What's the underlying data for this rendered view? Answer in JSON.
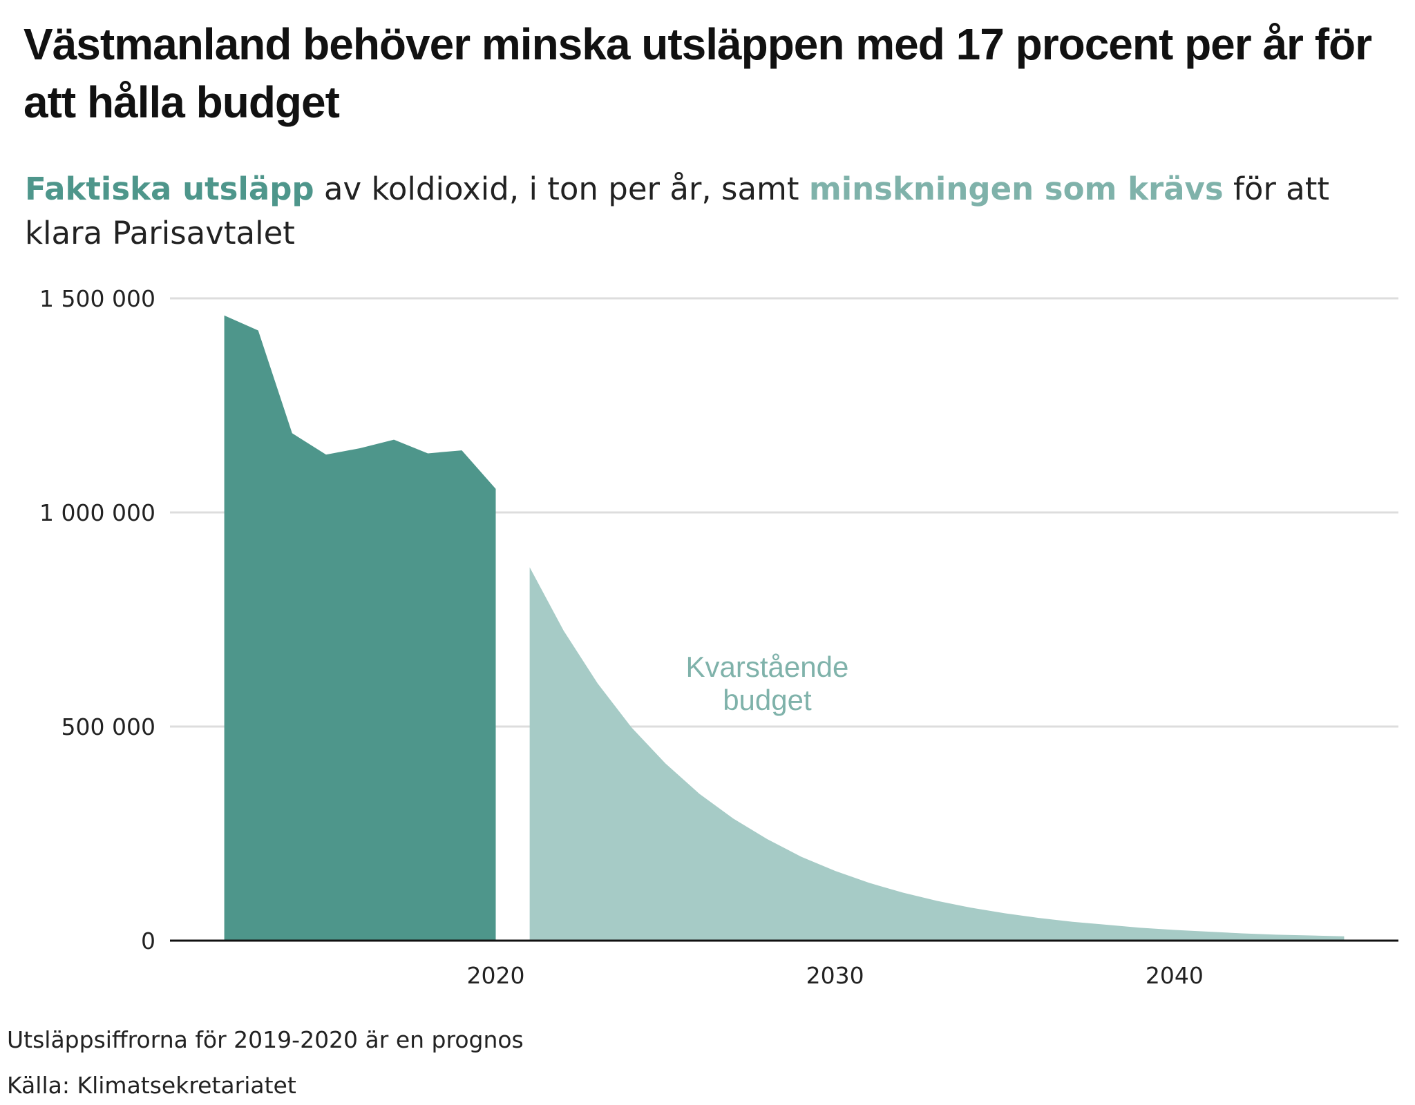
{
  "title": "Västmanland behöver minska utsläppen med 17 procent per år för att hålla budget",
  "subtitle": {
    "part1": "Faktiska utsläpp",
    "part2": " av koldioxid, i ton per år, samt ",
    "part3": "minskningen som krävs",
    "part4": " för att klara Parisavtalet"
  },
  "note": "Utsläppsiffrorna för 2019-2020 är en prognos",
  "source": "Källa: Klimatsekretariatet",
  "colors": {
    "actual": "#4e968b",
    "budget": "#a6cbc6",
    "grid": "#dddddd",
    "axis": "#111111",
    "budget_label": "#7fb2aa"
  },
  "chart_data": {
    "type": "area",
    "xlim": [
      2010.4,
      2046.6
    ],
    "ylim": [
      0,
      1500000
    ],
    "x_ticks": [
      {
        "value": 2020,
        "label": "2020"
      },
      {
        "value": 2030,
        "label": "2030"
      },
      {
        "value": 2040,
        "label": "2040"
      }
    ],
    "y_ticks": [
      {
        "value": 0,
        "label": "0"
      },
      {
        "value": 500000,
        "label": "500 000"
      },
      {
        "value": 1000000,
        "label": "1 000 000"
      },
      {
        "value": 1500000,
        "label": "1 500 000"
      }
    ],
    "grid": true,
    "series": [
      {
        "name": "Faktiska utsläpp",
        "x": [
          2012,
          2013,
          2014,
          2015,
          2016,
          2017,
          2018,
          2019,
          2020
        ],
        "y": [
          1460000,
          1425000,
          1185000,
          1135000,
          1150000,
          1170000,
          1138000,
          1145000,
          1055000
        ]
      },
      {
        "name": "minskningen som krävs",
        "x": [
          2021,
          2022,
          2023,
          2024,
          2025,
          2026,
          2027,
          2028,
          2029,
          2030,
          2031,
          2032,
          2033,
          2034,
          2035,
          2036,
          2037,
          2038,
          2039,
          2040,
          2041,
          2042,
          2043,
          2044,
          2045
        ],
        "y": [
          872000,
          724000,
          601000,
          498000,
          414000,
          343000,
          285000,
          237000,
          196000,
          163000,
          135000,
          112000,
          93000,
          77000,
          64000,
          53000,
          44000,
          37000,
          30000,
          25000,
          21000,
          17000,
          14000,
          12000,
          10000
        ]
      }
    ],
    "annotation": {
      "lines": [
        "Kvarstående",
        "budget"
      ],
      "x": 2028,
      "y": 600000
    }
  }
}
